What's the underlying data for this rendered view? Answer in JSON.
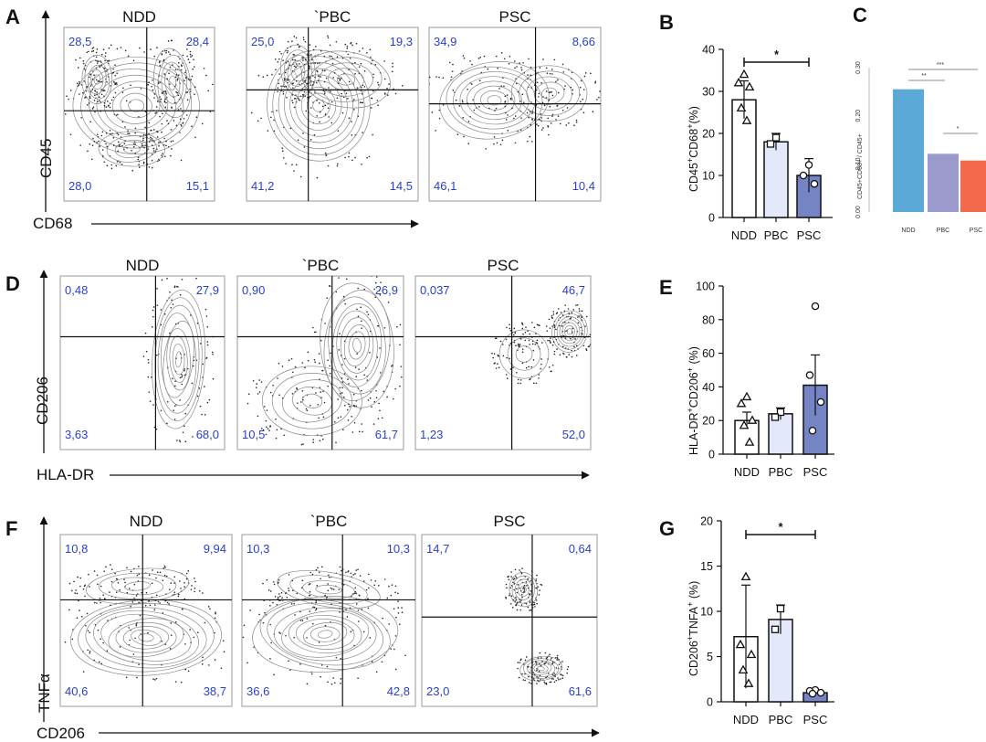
{
  "flow_rows": [
    {
      "letter": "A",
      "y_axis": "CD45",
      "x_axis": "CD68",
      "plots": [
        {
          "title": "NDD",
          "quadrants": {
            "ul": "28,5",
            "ur": "28,4",
            "ll": "28,0",
            "lr": "15,1"
          }
        },
        {
          "title": "`PBC",
          "quadrants": {
            "ul": "25,0",
            "ur": "19,3",
            "ll": "41,2",
            "lr": "14,5"
          }
        },
        {
          "title": "PSC",
          "quadrants": {
            "ul": "34,9",
            "ur": "8,66",
            "ll": "46,1",
            "lr": "10,4"
          }
        }
      ]
    },
    {
      "letter": "D",
      "y_axis": "CD206",
      "x_axis": "HLA-DR",
      "plots": [
        {
          "title": "NDD",
          "quadrants": {
            "ul": "0,48",
            "ur": "27,9",
            "ll": "3,63",
            "lr": "68,0"
          }
        },
        {
          "title": "`PBC",
          "quadrants": {
            "ul": "0,90",
            "ur": "26,9",
            "ll": "10,5",
            "lr": "61,7"
          }
        },
        {
          "title": "PSC",
          "quadrants": {
            "ul": "0,037",
            "ur": "46,7",
            "ll": "1,23",
            "lr": "52,0"
          }
        }
      ]
    },
    {
      "letter": "F",
      "y_axis": "TNFα",
      "x_axis": "CD206",
      "plots": [
        {
          "title": "NDD",
          "quadrants": {
            "ul": "10,8",
            "ur": "9,94",
            "ll": "40,6",
            "lr": "38,7"
          }
        },
        {
          "title": "`PBC",
          "quadrants": {
            "ul": "10,3",
            "ur": "10,3",
            "ll": "36,6",
            "lr": "42,8"
          }
        },
        {
          "title": "PSC",
          "quadrants": {
            "ul": "14,7",
            "ur": "0,64",
            "ll": "23,0",
            "lr": "61,6"
          }
        }
      ]
    }
  ],
  "chart_data": [
    {
      "panel": "B",
      "type": "bar",
      "ylabel": "CD45+CD68+(%)",
      "ylabel_main": "CD45",
      "ylabel_sup1": "+",
      "ylabel_mid": "CD68",
      "ylabel_sup2": "+",
      "ylabel_end": "(%)",
      "categories": [
        "NDD",
        "PBC",
        "PSC"
      ],
      "values": [
        28,
        18,
        10
      ],
      "errors": [
        4.5,
        2,
        4
      ],
      "colors": [
        "#ffffff",
        "#e3e8fa",
        "#7484c4"
      ],
      "markers": [
        "triangle",
        "square",
        "circle"
      ],
      "points": [
        [
          34,
          32,
          31,
          26,
          23
        ],
        [
          19,
          17.5
        ],
        [
          12.5,
          10,
          8
        ]
      ],
      "ylim": [
        0,
        40
      ],
      "yticks": [
        0,
        10,
        20,
        30,
        40
      ],
      "significance": [
        {
          "from": "NDD",
          "to": "PSC",
          "label": "*"
        }
      ]
    },
    {
      "panel": "C",
      "type": "bar",
      "ylabel": "CD45+CD68+ / CD45+",
      "categories": [
        "NDD",
        "PBC",
        "PSC"
      ],
      "values": [
        0.255,
        0.121,
        0.107
      ],
      "colors": [
        "#5aa9d6",
        "#9a9bcc",
        "#f2694b"
      ],
      "ylim": [
        0,
        0.3
      ],
      "yticks": [
        "0.00",
        "0.10",
        "0.20",
        "0.30"
      ],
      "significance": [
        {
          "from": "NDD",
          "to": "PSC",
          "label": "***"
        },
        {
          "from": "NDD",
          "to": "PBC",
          "label": "**"
        },
        {
          "from": "PBC",
          "to": "PSC",
          "label": "*"
        }
      ]
    },
    {
      "panel": "E",
      "type": "bar",
      "ylabel": "HLA-DR+CD206+ (%)",
      "ylabel_main": "HLA-DR",
      "ylabel_sup1": "+",
      "ylabel_mid": "CD206",
      "ylabel_sup2": "+",
      "ylabel_end": " (%)",
      "categories": [
        "NDD",
        "PBC",
        "PSC"
      ],
      "values": [
        20,
        24,
        41
      ],
      "errors": [
        5,
        3.5,
        18
      ],
      "colors": [
        "#ffffff",
        "#e3e8fa",
        "#7484c4"
      ],
      "markers": [
        "triangle",
        "square",
        "circle"
      ],
      "points": [
        [
          34,
          30,
          20,
          17,
          7
        ],
        [
          25,
          22
        ],
        [
          88,
          47,
          31,
          14
        ]
      ],
      "ylim": [
        0,
        100
      ],
      "yticks": [
        0,
        20,
        40,
        60,
        80,
        100
      ],
      "significance": []
    },
    {
      "panel": "G",
      "type": "bar",
      "ylabel": "CD206+TNFA+ (%)",
      "ylabel_main": "CD206",
      "ylabel_sup1": "+",
      "ylabel_mid": "TNFA",
      "ylabel_sup2": "+",
      "ylabel_end": " (%)",
      "categories": [
        "NDD",
        "PBC",
        "PSC"
      ],
      "values": [
        7.2,
        9.1,
        1.0
      ],
      "errors": [
        5.7,
        1.6,
        0.2
      ],
      "colors": [
        "#ffffff",
        "#e3e8fa",
        "#7484c4"
      ],
      "markers": [
        "triangle",
        "square",
        "circle"
      ],
      "points": [
        [
          13.8,
          6.3,
          5.2,
          3.5,
          2.0
        ],
        [
          10.3,
          8.0
        ],
        [
          1.3,
          1.2,
          1.0,
          0.9
        ]
      ],
      "ylim": [
        0,
        20
      ],
      "yticks": [
        0,
        5,
        10,
        15,
        20
      ],
      "significance": [
        {
          "from": "NDD",
          "to": "PSC",
          "label": "*"
        }
      ]
    }
  ]
}
